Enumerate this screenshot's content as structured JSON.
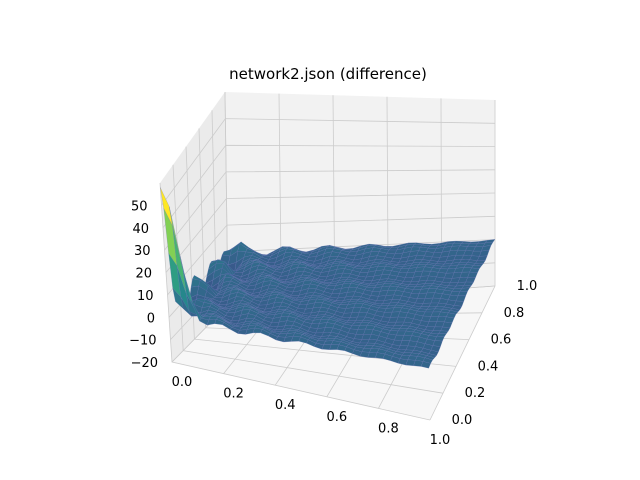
{
  "chart_data": {
    "type": "surface3d",
    "title": "network2.json (difference)",
    "colormap": "viridis",
    "x_axis": {
      "label": "",
      "range": [
        0.0,
        1.0
      ],
      "ticks": [
        0.0,
        0.2,
        0.4,
        0.6,
        0.8,
        1.0
      ],
      "tick_labels": [
        "0.0",
        "0.2",
        "0.4",
        "0.6",
        "0.8",
        "1.0"
      ]
    },
    "y_axis": {
      "label": "",
      "range": [
        0.0,
        1.0
      ],
      "ticks": [
        0.0,
        0.2,
        0.4,
        0.6,
        0.8,
        1.0
      ],
      "tick_labels": [
        "0.0",
        "0.2",
        "0.4",
        "0.6",
        "0.8",
        "1.0"
      ]
    },
    "z_axis": {
      "label": "",
      "range": [
        -20,
        60
      ],
      "ticks": [
        -20,
        -10,
        0,
        10,
        20,
        30,
        40,
        50
      ],
      "tick_labels": [
        "−20",
        "−10",
        "0",
        "10",
        "20",
        "30",
        "40",
        "50"
      ]
    },
    "surface_features": {
      "baseline_z": 0,
      "peak": {
        "x": 0.0,
        "y": 0.0,
        "z": 58
      },
      "description_note": "surface mostly flat near z≈0 with sharp spike near x=0, y=0"
    },
    "colors": {
      "low": "#3b528b",
      "mid": "#21918c",
      "high": "#fde725",
      "grid": "#cccccc"
    }
  }
}
